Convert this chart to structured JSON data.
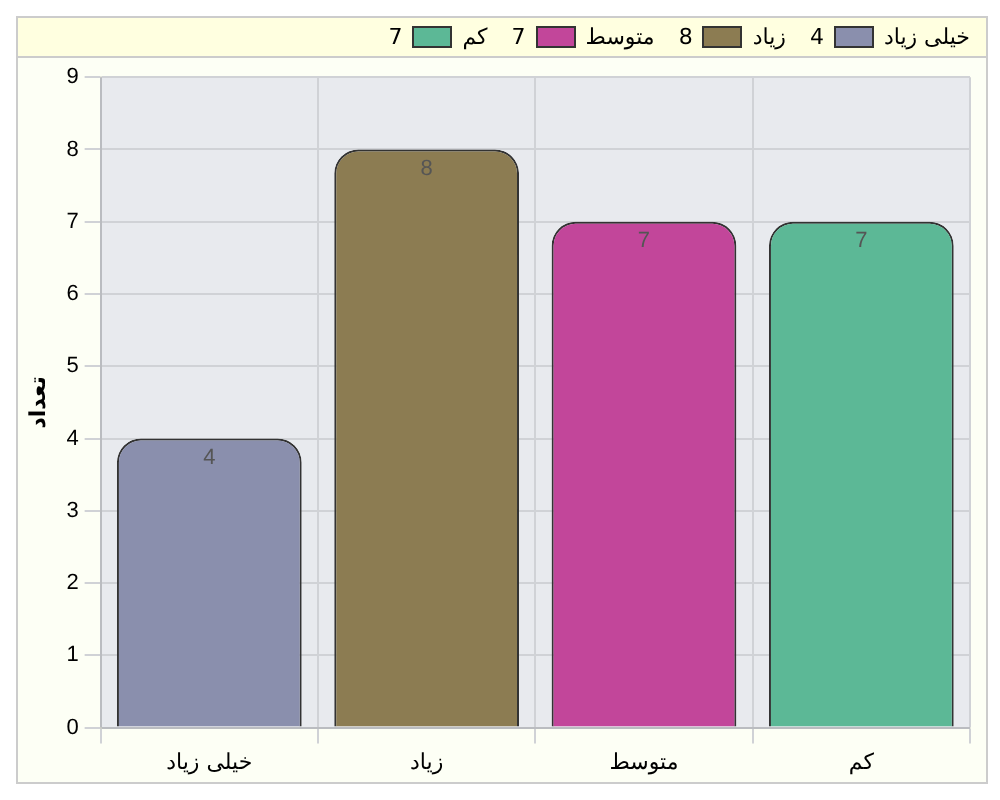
{
  "chart_data": {
    "type": "bar",
    "ylabel": "تعداد",
    "categories": [
      "خیلی زیاد",
      "زیاد",
      "متوسط",
      "کم"
    ],
    "series": [
      {
        "name": "خیلی زیاد",
        "color": "#8a8fad",
        "values": [
          4,
          null,
          null,
          null
        ]
      },
      {
        "name": "زیاد",
        "color": "#8c7c52",
        "values": [
          null,
          8,
          null,
          null
        ]
      },
      {
        "name": "متوسط",
        "color": "#c2469a",
        "values": [
          null,
          null,
          7,
          null
        ]
      },
      {
        "name": "کم",
        "color": "#5cb896",
        "values": [
          null,
          null,
          null,
          7
        ]
      }
    ],
    "annotations": [
      "4",
      "8",
      "7",
      "7"
    ],
    "ylim": [
      0,
      9
    ],
    "yticks": [
      0,
      1,
      2,
      3,
      4,
      5,
      6,
      7,
      8,
      9
    ],
    "grid": true,
    "legend": "top right",
    "data_labels": true
  }
}
